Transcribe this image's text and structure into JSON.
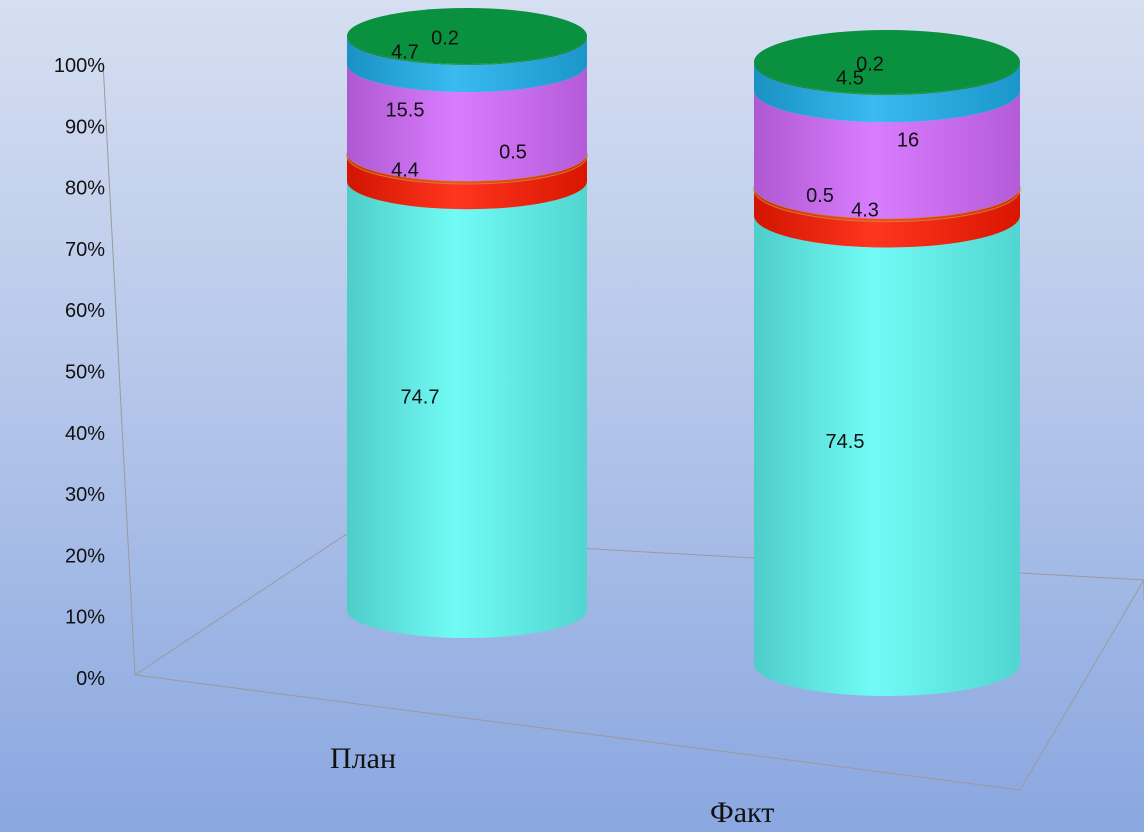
{
  "chart_data": {
    "type": "bar",
    "stacked": true,
    "percent": true,
    "style": "3d-cylinder",
    "categories": [
      "План",
      "Факт"
    ],
    "series": [
      {
        "values": [
          74.7,
          74.5
        ],
        "color": "#5ffaf5"
      },
      {
        "values": [
          4.4,
          4.3
        ],
        "color": "#ff1a00"
      },
      {
        "values": [
          0.5,
          0.5
        ],
        "color": "#ff3300"
      },
      {
        "values": [
          15.5,
          16
        ],
        "color": "#d46bff"
      },
      {
        "values": [
          4.7,
          4.5
        ],
        "color": "#1fb1ee"
      },
      {
        "values": [
          0.2,
          0.2
        ],
        "color": "#0a9140"
      }
    ],
    "data_labels": [
      [
        "74.7",
        "4.4",
        "0.5",
        "15.5",
        "4.7",
        "0.2"
      ],
      [
        "74.5",
        "4.3",
        "0.5",
        "16",
        "4.5",
        "0.2"
      ]
    ],
    "yticks": [
      "0%",
      "10%",
      "20%",
      "30%",
      "40%",
      "50%",
      "60%",
      "70%",
      "80%",
      "90%",
      "100%"
    ],
    "ylim": [
      0,
      100
    ],
    "grid": false,
    "legend": "none",
    "title": "",
    "xlabel": "",
    "ylabel": ""
  }
}
